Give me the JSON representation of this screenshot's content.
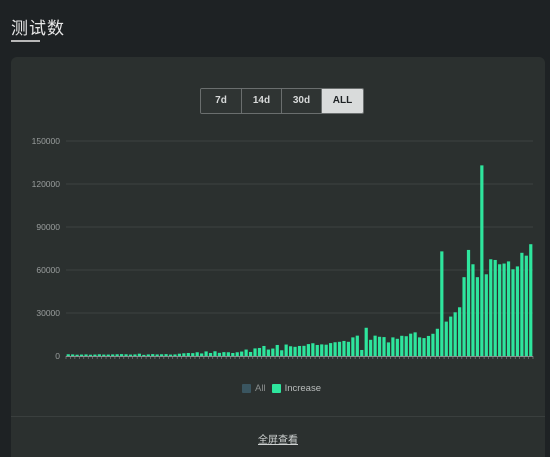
{
  "header": {
    "title": "测试数"
  },
  "range_buttons": [
    {
      "label": "7d",
      "active": false
    },
    {
      "label": "14d",
      "active": false
    },
    {
      "label": "30d",
      "active": false
    },
    {
      "label": "ALL",
      "active": true
    }
  ],
  "legend": [
    {
      "label": "All",
      "color": "#3a5560",
      "active": false
    },
    {
      "label": "Increase",
      "color": "#2ee59d",
      "active": true
    }
  ],
  "footer": {
    "fullscreen_label": "全屏查看"
  },
  "colors": {
    "bar": "#2ee59d",
    "grid": "#3d4241",
    "axis_text": "#9a9e9e",
    "axis_line": "#8a8e8e"
  },
  "chart_data": {
    "type": "bar",
    "series": [
      {
        "name": "Increase",
        "values": [
          1200,
          1100,
          900,
          1000,
          1100,
          900,
          1000,
          1200,
          1000,
          1000,
          1100,
          1200,
          1300,
          1200,
          1000,
          1100,
          1600,
          800,
          1100,
          1300,
          1100,
          1200,
          1300,
          1000,
          1100,
          1600,
          1900,
          2100,
          2000,
          2600,
          1800,
          3200,
          2100,
          3300,
          2200,
          2700,
          2600,
          2100,
          2600,
          3100,
          4500,
          2800,
          5300,
          5600,
          7000,
          4500,
          5200,
          7700,
          4000,
          8000,
          6800,
          6400,
          7000,
          7100,
          8300,
          8900,
          7700,
          8100,
          7900,
          9000,
          9600,
          9900,
          10500,
          9900,
          13000,
          14200,
          4200,
          19700,
          11300,
          14200,
          13400,
          13200,
          9500,
          13000,
          12000,
          14100,
          13800,
          15600,
          16500,
          13000,
          12500,
          14000,
          15500,
          19000,
          73000,
          24000,
          27500,
          30500,
          34000,
          55000,
          74000,
          64000,
          55000,
          133000,
          57000,
          67500,
          67000,
          64000,
          64500,
          66000,
          60500,
          62500,
          72000,
          70000,
          78000
        ]
      }
    ],
    "y_ticks": [
      0,
      30000,
      60000,
      90000,
      120000,
      150000
    ],
    "ylim": [
      0,
      150000
    ],
    "grid": true,
    "legend_position": "bottom"
  }
}
